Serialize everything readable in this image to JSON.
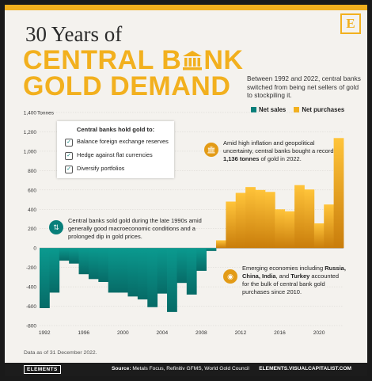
{
  "header": {
    "logo_letter": "E",
    "title_line1": "30 Years of",
    "title_line2a": "CENTRAL B",
    "title_line2b": "NK",
    "title_line3": "GOLD DEMAND",
    "subtitle": "Between 1992 and 2022, central banks switched from being net sellers of gold to stockpiling it."
  },
  "legend": {
    "net_sales": "Net sales",
    "net_purchases": "Net purchases"
  },
  "callout_box": {
    "heading": "Central banks hold gold to:",
    "items": [
      "Balance foreign exchange reserves",
      "Hedge against flat currencies",
      "Diversify portfolios"
    ]
  },
  "notes": {
    "sold_pre": "Central banks sold gold during the late 1990s amid generally good macroeconomic conditions and a prolonged dip in gold prices.",
    "bought_pre": "Amid high inflation and geopolitical uncertainty, central banks bought a record ",
    "bought_bold": "1,136 tonnes",
    "bought_post": " of gold in 2022.",
    "emerging_pre": "Emerging economies including ",
    "emerging_bold": "Russia, China, India",
    "emerging_mid": ", and ",
    "emerging_bold2": "Turkey",
    "emerging_post": " accounted for the bulk of central bank gold purchases since 2010."
  },
  "footer": {
    "as_of": "Data as of 31 December 2022.",
    "brand": "ELEMENTS",
    "source_label": "Source:",
    "source_text": "Metals Focus, Refinitiv GFMS, World Gold Council",
    "url": "ELEMENTS.VISUALCAPITALIST.COM"
  },
  "colors": {
    "accent": "#f2b01e",
    "net_sales": "#087f7a",
    "net_purchases": "#f2b01e"
  },
  "chart_data": {
    "type": "bar",
    "ylabel_unit": "Tonnes",
    "ylim": [
      -800,
      1400
    ],
    "yticks": [
      -800,
      -600,
      -400,
      -200,
      0,
      200,
      400,
      600,
      800,
      1000,
      1200,
      1400
    ],
    "xticks": [
      1992,
      1996,
      2000,
      2004,
      2008,
      2012,
      2016,
      2020
    ],
    "x": [
      1992,
      1993,
      1994,
      1995,
      1996,
      1997,
      1998,
      1999,
      2000,
      2001,
      2002,
      2003,
      2004,
      2005,
      2006,
      2007,
      2008,
      2009,
      2010,
      2011,
      2012,
      2013,
      2014,
      2015,
      2016,
      2017,
      2018,
      2019,
      2020,
      2021,
      2022
    ],
    "values": [
      -620,
      -460,
      -130,
      -160,
      -270,
      -320,
      -350,
      -460,
      -460,
      -500,
      -530,
      -610,
      -470,
      -660,
      -360,
      -480,
      -235,
      -30,
      80,
      480,
      570,
      630,
      600,
      580,
      400,
      380,
      650,
      605,
      255,
      450,
      1136
    ]
  }
}
